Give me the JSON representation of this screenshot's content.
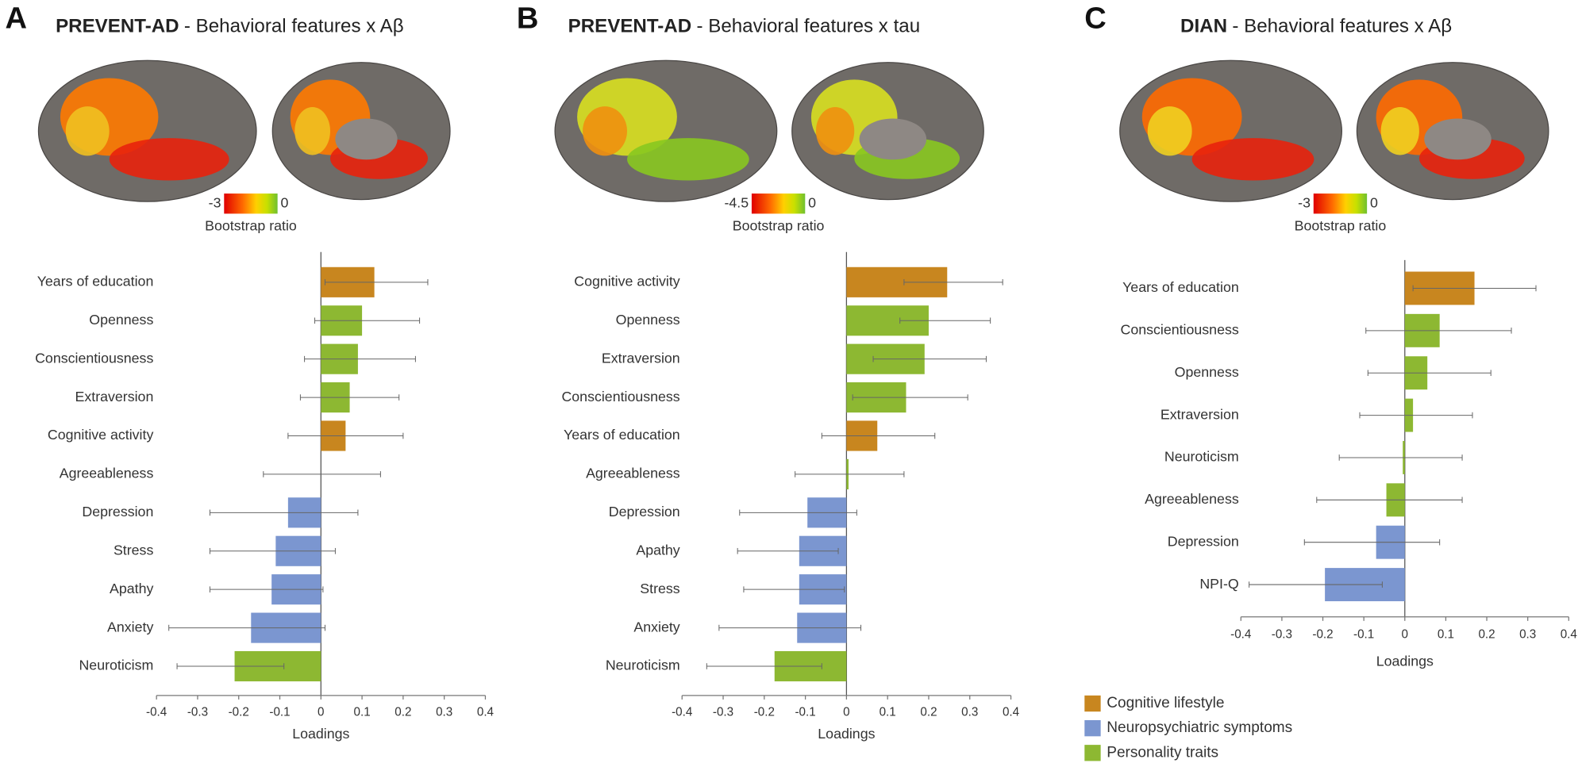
{
  "chart_data": [
    {
      "type": "bar",
      "panel": "A",
      "dataset": "PREVENT-AD",
      "title": "- Behavioral features x Aβ",
      "colorbar": {
        "ticks": [
          -3,
          0
        ],
        "label": "Bootstrap ratio"
      },
      "categories": [
        "Years of education",
        "Openness",
        "Conscientiousness",
        "Extraversion",
        "Cognitive activity",
        "Agreeableness",
        "Depression",
        "Stress",
        "Apathy",
        "Anxiety",
        "Neuroticism"
      ],
      "values": [
        0.13,
        0.1,
        0.09,
        0.07,
        0.06,
        0.0,
        -0.08,
        -0.11,
        -0.12,
        -0.17,
        -0.21
      ],
      "ci": [
        [
          0.01,
          0.26
        ],
        [
          -0.015,
          0.24
        ],
        [
          -0.04,
          0.23
        ],
        [
          -0.05,
          0.19
        ],
        [
          -0.08,
          0.2
        ],
        [
          -0.14,
          0.145
        ],
        [
          -0.27,
          0.09
        ],
        [
          -0.27,
          0.035
        ],
        [
          -0.27,
          0.005
        ],
        [
          -0.37,
          0.01
        ],
        [
          -0.35,
          -0.09
        ]
      ],
      "bar_colors": [
        "#c8861f",
        "#8db832",
        "#8db832",
        "#8db832",
        "#c8861f",
        "#8db832",
        "#7b96d0",
        "#7b96d0",
        "#7b96d0",
        "#7b96d0",
        "#8db832"
      ],
      "xlabel": "Loadings",
      "xlim": [
        -0.4,
        0.4
      ],
      "xticks": [
        -0.4,
        -0.3,
        -0.2,
        -0.1,
        0,
        0.1,
        0.2,
        0.3,
        0.4
      ]
    },
    {
      "type": "bar",
      "panel": "B",
      "dataset": "PREVENT-AD",
      "title": "- Behavioral features x tau",
      "colorbar": {
        "ticks": [
          -4.5,
          0
        ],
        "label": "Bootstrap ratio"
      },
      "categories": [
        "Cognitive activity",
        "Openness",
        "Extraversion",
        "Conscientiousness",
        "Years of education",
        "Agreeableness",
        "Depression",
        "Apathy",
        "Stress",
        "Anxiety",
        "Neuroticism"
      ],
      "values": [
        0.245,
        0.2,
        0.19,
        0.145,
        0.075,
        0.005,
        -0.095,
        -0.115,
        -0.115,
        -0.12,
        -0.175
      ],
      "ci": [
        [
          0.14,
          0.38
        ],
        [
          0.13,
          0.35
        ],
        [
          0.065,
          0.34
        ],
        [
          0.015,
          0.295
        ],
        [
          -0.06,
          0.215
        ],
        [
          -0.125,
          0.14
        ],
        [
          -0.26,
          0.025
        ],
        [
          -0.265,
          -0.02
        ],
        [
          -0.25,
          -0.005
        ],
        [
          -0.31,
          0.035
        ],
        [
          -0.34,
          -0.06
        ]
      ],
      "bar_colors": [
        "#c8861f",
        "#8db832",
        "#8db832",
        "#8db832",
        "#c8861f",
        "#8db832",
        "#7b96d0",
        "#7b96d0",
        "#7b96d0",
        "#7b96d0",
        "#8db832"
      ],
      "xlabel": "Loadings",
      "xlim": [
        -0.4,
        0.4
      ],
      "xticks": [
        -0.4,
        -0.3,
        -0.2,
        -0.1,
        0,
        0.1,
        0.2,
        0.3,
        0.4
      ]
    },
    {
      "type": "bar",
      "panel": "C",
      "dataset": "DIAN",
      "title": "- Behavioral features x Aβ",
      "colorbar": {
        "ticks": [
          -3,
          0
        ],
        "label": "Bootstrap ratio"
      },
      "categories": [
        "Years of education",
        "Conscientiousness",
        "Openness",
        "Extraversion",
        "Neuroticism",
        "Agreeableness",
        "Depression",
        "NPI-Q"
      ],
      "values": [
        0.17,
        0.085,
        0.055,
        0.02,
        -0.005,
        -0.045,
        -0.07,
        -0.195
      ],
      "ci": [
        [
          0.02,
          0.32
        ],
        [
          -0.095,
          0.26
        ],
        [
          -0.09,
          0.21
        ],
        [
          -0.11,
          0.165
        ],
        [
          -0.16,
          0.14
        ],
        [
          -0.215,
          0.14
        ],
        [
          -0.245,
          0.085
        ],
        [
          -0.38,
          -0.055
        ]
      ],
      "bar_colors": [
        "#c8861f",
        "#8db832",
        "#8db832",
        "#8db832",
        "#8db832",
        "#8db832",
        "#7b96d0",
        "#7b96d0"
      ],
      "xlabel": "Loadings",
      "xlim": [
        -0.4,
        0.4
      ],
      "xticks": [
        -0.4,
        -0.3,
        -0.2,
        -0.1,
        0,
        0.1,
        0.2,
        0.3,
        0.4
      ]
    }
  ],
  "legend": [
    {
      "name": "Cognitive lifestyle",
      "color": "#c8861f"
    },
    {
      "name": "Neuropsychiatric symptoms",
      "color": "#7b96d0"
    },
    {
      "name": "Personality traits",
      "color": "#8db832"
    }
  ]
}
